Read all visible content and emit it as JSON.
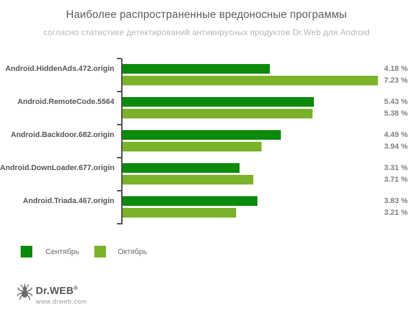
{
  "header": {
    "title": "Наиболее распространенные вредоносные программы",
    "subtitle": "согласно статистике детектирований антивирусных продуктов Dr.Web для Android"
  },
  "chart_data": {
    "type": "bar",
    "orientation": "horizontal",
    "title": "Наиболее распространенные вредоносные программы",
    "subtitle": "согласно статистике детектирований антивирусных продуктов Dr.Web для Android",
    "unit": "%",
    "xlim": [
      0,
      7.8
    ],
    "grid": false,
    "legend_position": "bottom-left",
    "categories": [
      "Android.HiddenAds.472.origin",
      "Android.RemoteCode.5564",
      "Android.Backdoor.682.origin",
      "Android.DownLoader.677.origin",
      "Android.Triada.467.origin"
    ],
    "series": [
      {
        "name": "Сентябрь",
        "color": "#0c8a0c",
        "values": [
          4.18,
          5.43,
          4.49,
          3.31,
          3.83
        ]
      },
      {
        "name": "Октябрь",
        "color": "#7ab22a",
        "values": [
          7.23,
          5.38,
          3.94,
          3.71,
          3.21
        ]
      }
    ],
    "groups": [
      {
        "label": "Android.HiddenAds.472.origin",
        "sep": 4.18,
        "oct": 7.23,
        "sep_label": "4.18 %",
        "oct_label": "7.23 %"
      },
      {
        "label": "Android.RemoteCode.5564",
        "sep": 5.43,
        "oct": 5.38,
        "sep_label": "5.43 %",
        "oct_label": "5.38 %"
      },
      {
        "label": "Android.Backdoor.682.origin",
        "sep": 4.49,
        "oct": 3.94,
        "sep_label": "4.49 %",
        "oct_label": "3.94 %"
      },
      {
        "label": "Android.DownLoader.677.origin",
        "sep": 3.31,
        "oct": 3.71,
        "sep_label": "3.31 %",
        "oct_label": "3.71 %"
      },
      {
        "label": "Android.Triada.467.origin",
        "sep": 3.83,
        "oct": 3.21,
        "sep_label": "3.83 %",
        "oct_label": "3.21 %"
      }
    ]
  },
  "legend": {
    "items": [
      {
        "label": "Сентябрь",
        "color": "#0c8a0c"
      },
      {
        "label": "Октябрь",
        "color": "#7ab22a"
      }
    ]
  },
  "footer": {
    "brand": "Dr.WEB",
    "registered_mark": "®",
    "url": "www.drweb.com"
  },
  "colors": {
    "september": "#0c8a0c",
    "october": "#7ab22a",
    "axis": "#4d4d4d",
    "title_text": "#5a5a5a",
    "subtitle_text": "#b5b5b5"
  }
}
